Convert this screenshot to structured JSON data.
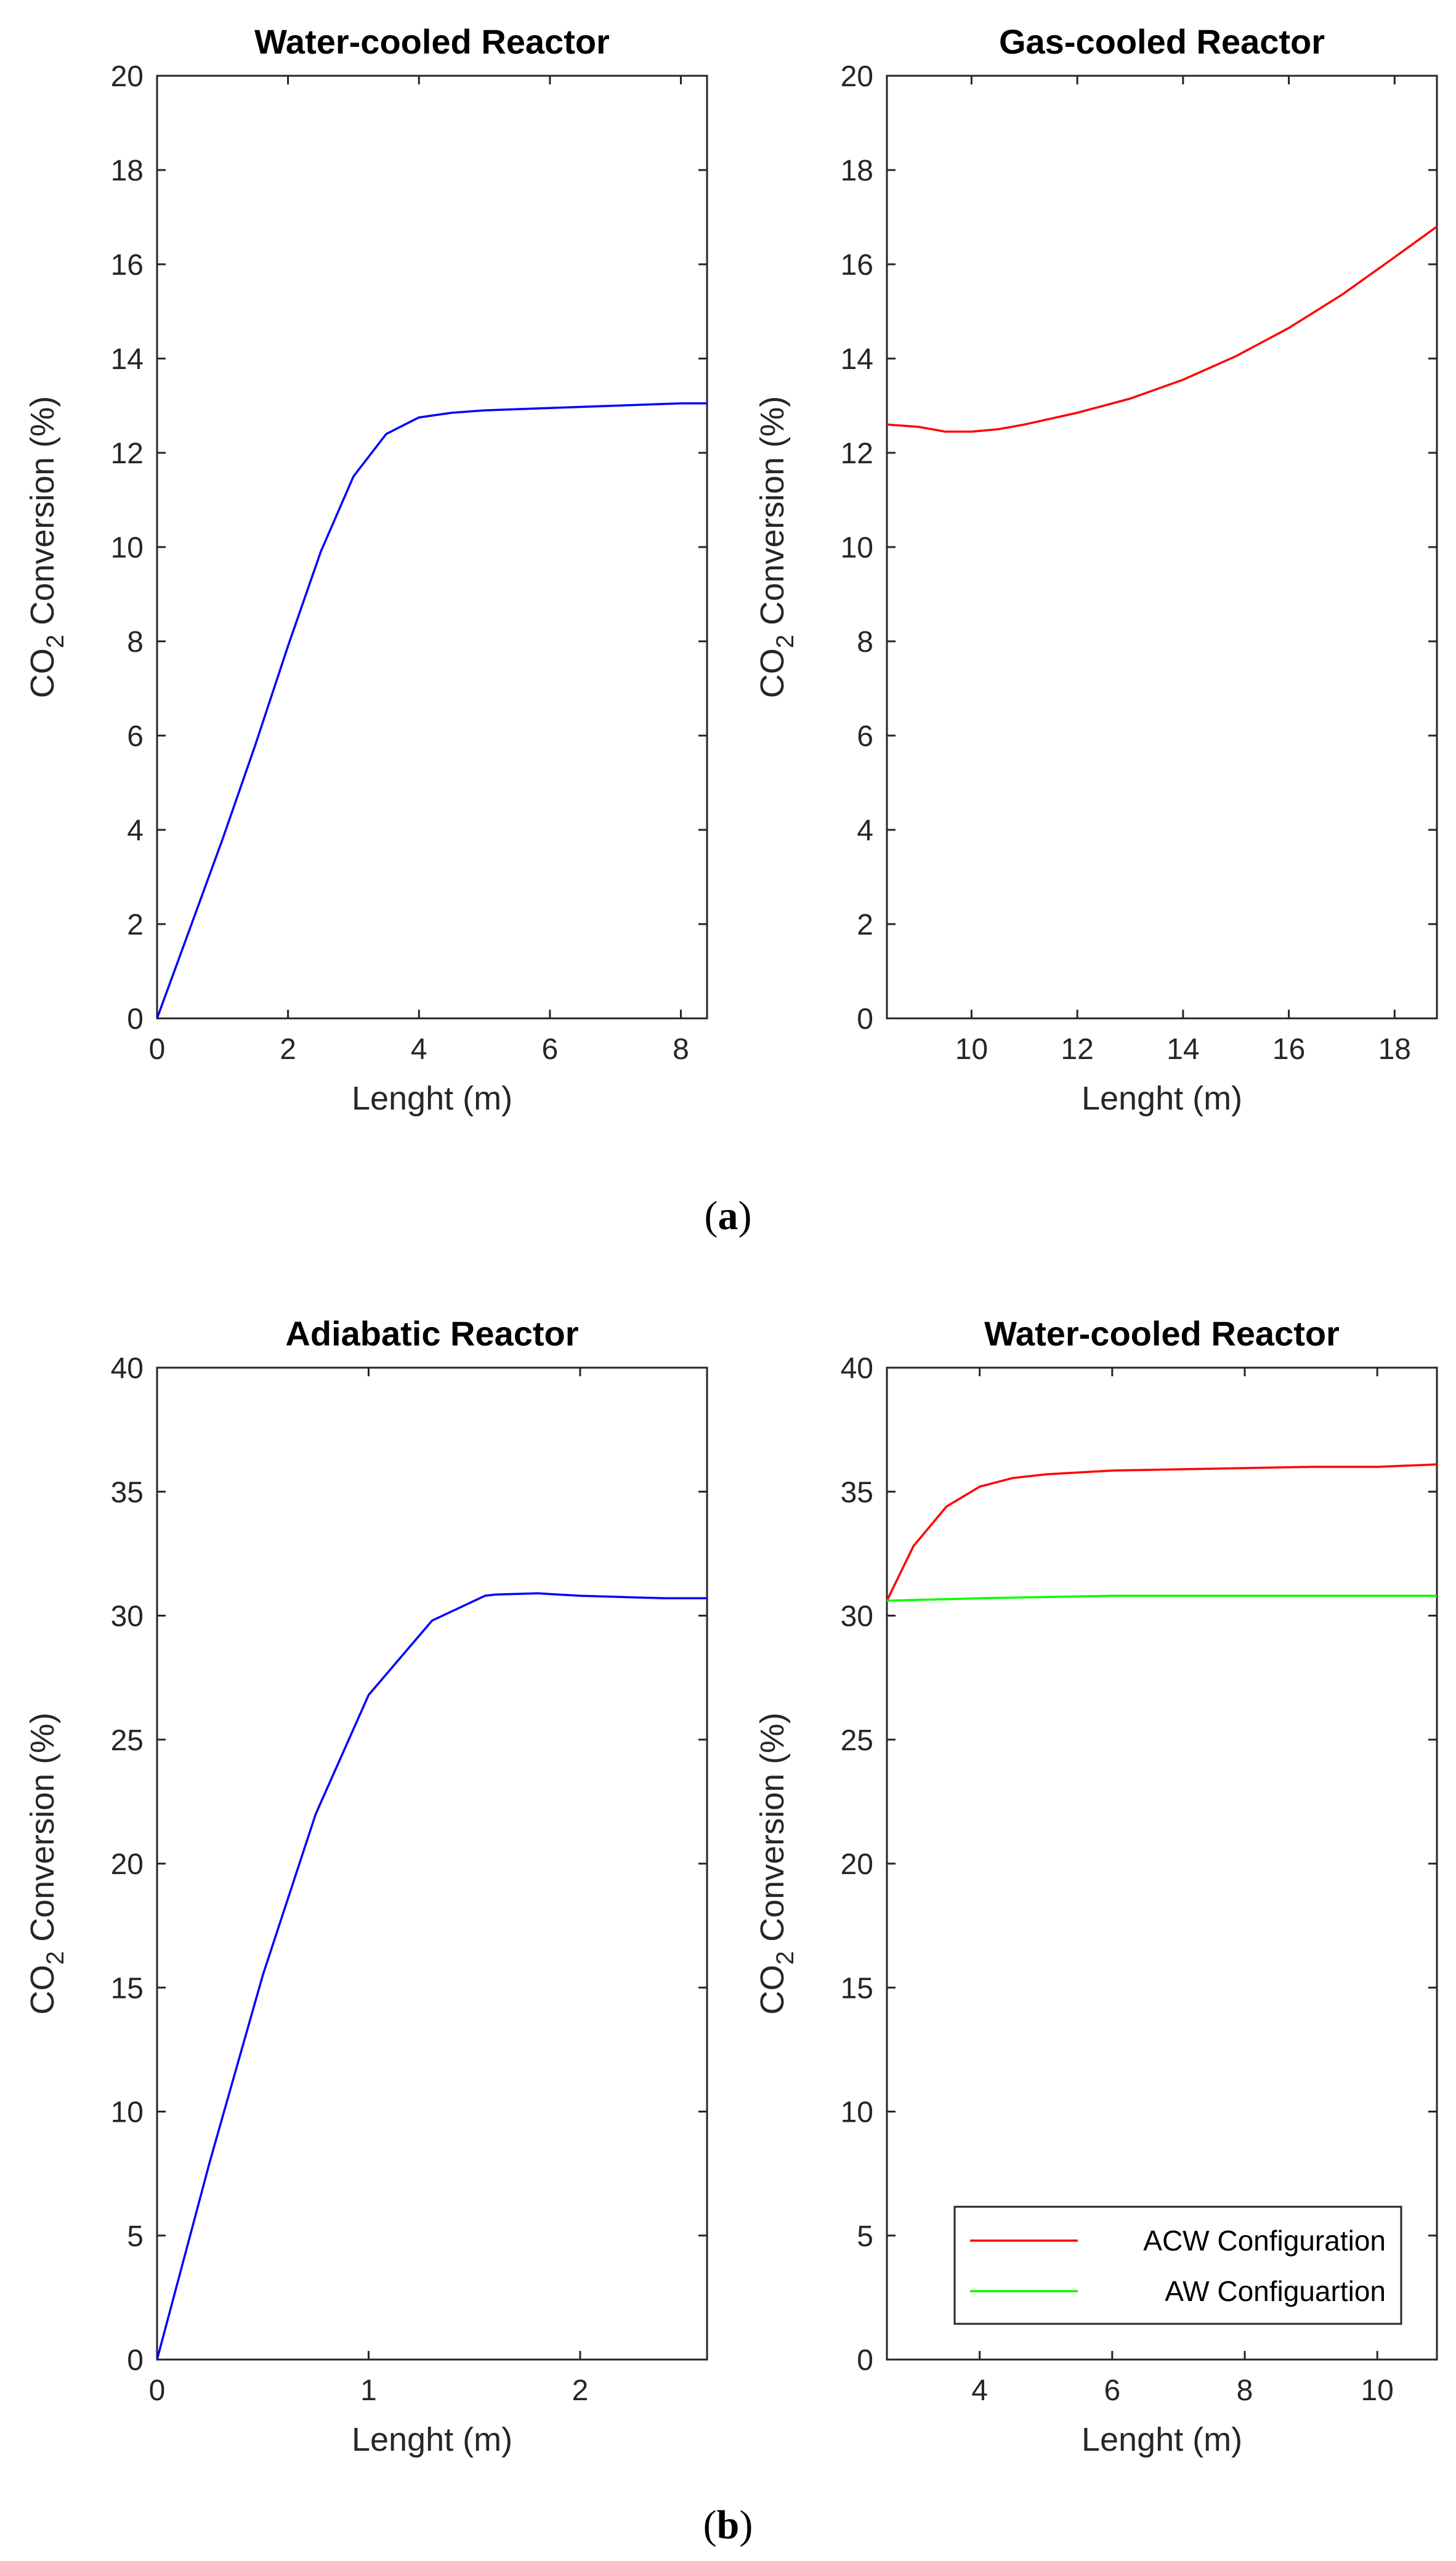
{
  "panel_labels": {
    "a": "a",
    "b": "b"
  },
  "chart_data": [
    {
      "type": "line",
      "title": "Water-cooled Reactor",
      "xlabel": "Lenght (m)",
      "ylabel_main": "CO",
      "ylabel_sub": "2",
      "ylabel_rest": " Conversion (%)",
      "xlim": [
        0,
        8.4
      ],
      "ylim": [
        0,
        20
      ],
      "xticks": [
        0,
        2,
        4,
        6,
        8
      ],
      "yticks": [
        0,
        2,
        4,
        6,
        8,
        10,
        12,
        14,
        16,
        18,
        20
      ],
      "grid": false,
      "series": [
        {
          "name": "Water-cooled",
          "color": "#0000ff",
          "x": [
            0,
            0.5,
            1.0,
            1.5,
            2.0,
            2.5,
            3.0,
            3.5,
            4.0,
            4.5,
            5.0,
            6.0,
            7.0,
            8.0,
            8.4
          ],
          "y": [
            0,
            1.9,
            3.8,
            5.8,
            7.9,
            9.9,
            11.5,
            12.4,
            12.75,
            12.85,
            12.9,
            12.95,
            13.0,
            13.05,
            13.05
          ]
        }
      ]
    },
    {
      "type": "line",
      "title": "Gas-cooled Reactor",
      "xlabel": "Lenght (m)",
      "ylabel_main": "CO",
      "ylabel_sub": "2",
      "ylabel_rest": " Conversion (%)",
      "xlim": [
        8.4,
        18.8
      ],
      "ylim": [
        0,
        20
      ],
      "xticks": [
        10,
        12,
        14,
        16,
        18
      ],
      "yticks": [
        0,
        2,
        4,
        6,
        8,
        10,
        12,
        14,
        16,
        18,
        20
      ],
      "grid": false,
      "series": [
        {
          "name": "Gas-cooled",
          "color": "#ff0000",
          "x": [
            8.4,
            9.0,
            9.5,
            10.0,
            10.5,
            11.0,
            12.0,
            13.0,
            14.0,
            15.0,
            16.0,
            17.0,
            18.0,
            18.8
          ],
          "y": [
            12.6,
            12.55,
            12.45,
            12.45,
            12.5,
            12.6,
            12.85,
            13.15,
            13.55,
            14.05,
            14.65,
            15.35,
            16.15,
            16.8
          ]
        }
      ]
    },
    {
      "type": "line",
      "title": "Adiabatic Reactor",
      "xlabel": "Lenght (m)",
      "ylabel_main": "CO",
      "ylabel_sub": "2",
      "ylabel_rest": " Conversion (%)",
      "xlim": [
        0,
        2.6
      ],
      "ylim": [
        0,
        40
      ],
      "xticks": [
        0,
        1,
        2
      ],
      "yticks": [
        0,
        5,
        10,
        15,
        20,
        25,
        30,
        35,
        40
      ],
      "grid": false,
      "series": [
        {
          "name": "Adiabatic",
          "color": "#0000ff",
          "x": [
            0,
            0.25,
            0.5,
            0.75,
            1.0,
            1.05,
            1.3,
            1.55,
            1.6,
            1.8,
            2.0,
            2.2,
            2.4,
            2.6
          ],
          "y": [
            0,
            8.0,
            15.5,
            22.0,
            26.8,
            27.3,
            29.8,
            30.8,
            30.85,
            30.9,
            30.8,
            30.75,
            30.7,
            30.7
          ]
        }
      ]
    },
    {
      "type": "line",
      "title": "Water-cooled Reactor",
      "xlabel": "Lenght (m)",
      "ylabel_main": "CO",
      "ylabel_sub": "2",
      "ylabel_rest": " Conversion (%)",
      "xlim": [
        2.6,
        10.9
      ],
      "ylim": [
        0,
        40
      ],
      "xticks": [
        4,
        6,
        8,
        10
      ],
      "yticks": [
        0,
        5,
        10,
        15,
        20,
        25,
        30,
        35,
        40
      ],
      "grid": false,
      "legend": "bottom-right",
      "series": [
        {
          "name": "ACW Configuration",
          "color": "#ff0000",
          "x": [
            2.6,
            3.0,
            3.5,
            4.0,
            4.5,
            5.0,
            6.0,
            7.0,
            8.0,
            9.0,
            10.0,
            10.9
          ],
          "y": [
            30.6,
            32.8,
            34.4,
            35.2,
            35.55,
            35.7,
            35.85,
            35.9,
            35.95,
            36.0,
            36.0,
            36.1
          ]
        },
        {
          "name": "AW Configuartion",
          "color": "#00ff00",
          "x": [
            2.6,
            4.0,
            6.0,
            8.0,
            10.0,
            10.9
          ],
          "y": [
            30.6,
            30.7,
            30.8,
            30.8,
            30.8,
            30.8
          ]
        }
      ]
    }
  ]
}
